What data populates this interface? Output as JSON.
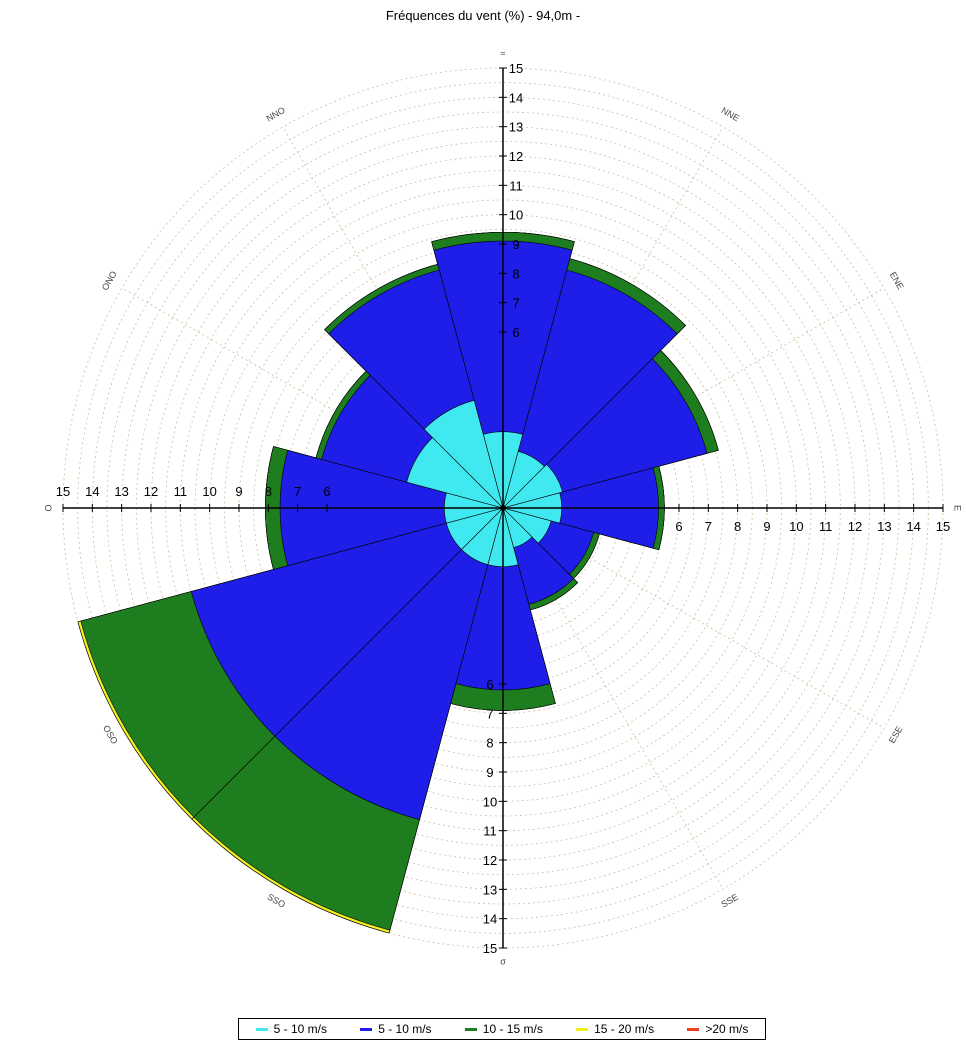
{
  "chart_data": {
    "type": "polar-bar",
    "title": "Fréquences du vent (%) - 94,0m -",
    "directions": [
      "N",
      "NNE",
      "ENE",
      "E",
      "ESE",
      "SSE",
      "S",
      "SSO",
      "OSO",
      "O",
      "ONO",
      "NNO"
    ],
    "direction_labels": {
      "N": "≈",
      "NNE": "NNE",
      "ENE": "ENE",
      "E": "E",
      "ESE": "ESE",
      "SSE": "SSE",
      "S": "σ",
      "SSO": "SSO",
      "OSO": "OSO",
      "O": "O",
      "ONO": "ONO",
      "NNO": "NNO"
    },
    "r_ticks": [
      "6",
      "7",
      "8",
      "9",
      "10",
      "11",
      "12",
      "13",
      "14",
      "15"
    ],
    "rmax": 15,
    "series": [
      {
        "name": "5 - 10 m/s",
        "color": "#40e8f0",
        "values": [
          2.6,
          2.0,
          2.1,
          2.0,
          1.7,
          1.4,
          2.0,
          2.0,
          2.0,
          2.0,
          3.4,
          3.8
        ]
      },
      {
        "name": "5 - 10 m/s",
        "color": "#1e1ee8",
        "values": [
          9.1,
          8.4,
          7.2,
          5.3,
          3.2,
          3.4,
          6.2,
          11.0,
          11.0,
          7.6,
          6.4,
          8.4
        ]
      },
      {
        "name": "10 - 15 m/s",
        "color": "#1e7d1e",
        "values": [
          9.4,
          8.8,
          7.6,
          5.5,
          3.4,
          3.6,
          6.9,
          14.9,
          14.9,
          8.1,
          6.6,
          8.6
        ]
      },
      {
        "name": "15 - 20 m/s",
        "color": "#f0f020",
        "values": [
          9.4,
          8.8,
          7.6,
          5.5,
          3.4,
          3.6,
          6.9,
          15.0,
          15.0,
          8.1,
          6.6,
          8.6
        ]
      },
      {
        "name": ">20 m/s",
        "color": "#e84020",
        "values": [
          9.4,
          8.8,
          7.6,
          5.5,
          3.4,
          3.6,
          6.9,
          15.0,
          15.0,
          8.1,
          6.6,
          8.6
        ]
      }
    ]
  },
  "legend": {
    "items": [
      {
        "label": "5 - 10 m/s",
        "color": "#40e8f0"
      },
      {
        "label": "5 - 10 m/s",
        "color": "#1e1ee8"
      },
      {
        "label": "10 - 15 m/s",
        "color": "#1e7d1e"
      },
      {
        "label": "15 - 20 m/s",
        "color": "#f0f020"
      },
      {
        "label": ">20 m/s",
        "color": "#e84020"
      }
    ]
  }
}
